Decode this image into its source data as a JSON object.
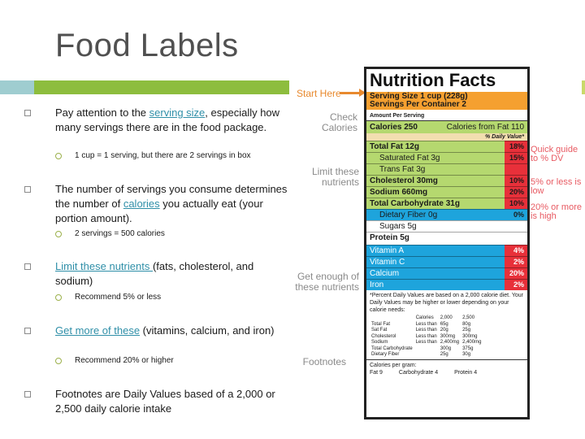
{
  "slide": {
    "title": "Food Labels"
  },
  "bullets": [
    {
      "pre": "Pay attention to the ",
      "link": "serving size",
      "post": ", especially how many servings there are in the food package.",
      "sub": "1 cup = 1 serving, but there are 2 servings in box"
    },
    {
      "pre": "The number of servings you consume determines the number of ",
      "link": "calories",
      "post": " you actually eat (your portion amount).",
      "sub": "2 servings = 500 calories"
    },
    {
      "pre": "",
      "link": "Limit these nutrients ",
      "post": "(fats, cholesterol, and sodium)",
      "sub": "Recommend 5% or less"
    },
    {
      "pre": "",
      "link": "Get more of these",
      "post": " (vitamins, calcium, and iron)",
      "sub": "Recommend 20% or higher"
    },
    {
      "pre": "Footnotes are Daily Values based of a 2,000 or 2,500 daily calorie intake",
      "link": "",
      "post": "",
      "sub": ""
    }
  ],
  "label": {
    "start_here": "Start Here",
    "check_calories": "Check Calories",
    "limit_nutrients": "Limit these nutrients",
    "get_enough": "Get enough of these nutrients",
    "footnotes": "Footnotes",
    "quick_guide": "Quick guide to % DV",
    "five_low": "5% or less is low",
    "twenty_high": "20% or more is high",
    "nf_title": "Nutrition Facts",
    "serving_size": "Serving Size 1 cup (228g)",
    "servings_per": "Servings Per Container 2",
    "amount_per": "Amount Per Serving",
    "calories": "Calories 250",
    "calories_fat": "Calories from Fat 110",
    "dv_head": "% Daily Value*",
    "nutrients_limit": [
      {
        "name": "Total Fat 12g",
        "pct": "18%"
      },
      {
        "name": "Saturated Fat 3g",
        "pct": "15%"
      },
      {
        "name": "Trans Fat 3g",
        "pct": ""
      },
      {
        "name": "Cholesterol 30mg",
        "pct": "10%"
      },
      {
        "name": "Sodium 660mg",
        "pct": "20%"
      },
      {
        "name": "Total Carbohydrate 31g",
        "pct": "10%"
      },
      {
        "name": "Dietary Fiber 0g",
        "pct": "0%"
      },
      {
        "name": "Sugars 5g",
        "pct": ""
      },
      {
        "name": "Protein 5g",
        "pct": ""
      }
    ],
    "nutrients_get": [
      {
        "name": "Vitamin A",
        "pct": "4%"
      },
      {
        "name": "Vitamin C",
        "pct": "2%"
      },
      {
        "name": "Calcium",
        "pct": "20%"
      },
      {
        "name": "Iron",
        "pct": "2%"
      }
    ],
    "footnote_text": "*Percent Daily Values are based on a 2,000 calorie diet. Your Daily Values may be higher or lower depending on your calorie needs:",
    "footnote_grid": [
      [
        "",
        "Calories",
        "2,000",
        "2,500"
      ],
      [
        "Total Fat",
        "Less than",
        "65g",
        "80g"
      ],
      [
        "Sat Fat",
        "Less than",
        "20g",
        "25g"
      ],
      [
        "Cholesterol",
        "Less than",
        "300mg",
        "300mg"
      ],
      [
        "Sodium",
        "Less than",
        "2,400mg",
        "2,400mg"
      ],
      [
        "Total Carbohydrate",
        "",
        "300g",
        "375g"
      ],
      [
        "Dietary Fiber",
        "",
        "25g",
        "30g"
      ]
    ],
    "cal_per_gram": "Calories per gram:",
    "cal_fat": "Fat 9",
    "cal_carb": "Carbohydrate 4",
    "cal_protein": "Protein 4"
  },
  "colors": {
    "accent_green": "#8dbd3e",
    "accent_teal": "#9fcdd0",
    "link": "#2f8fa8",
    "orange": "#f5a030",
    "red": "#e8303a",
    "blue": "#1ea4dc"
  }
}
